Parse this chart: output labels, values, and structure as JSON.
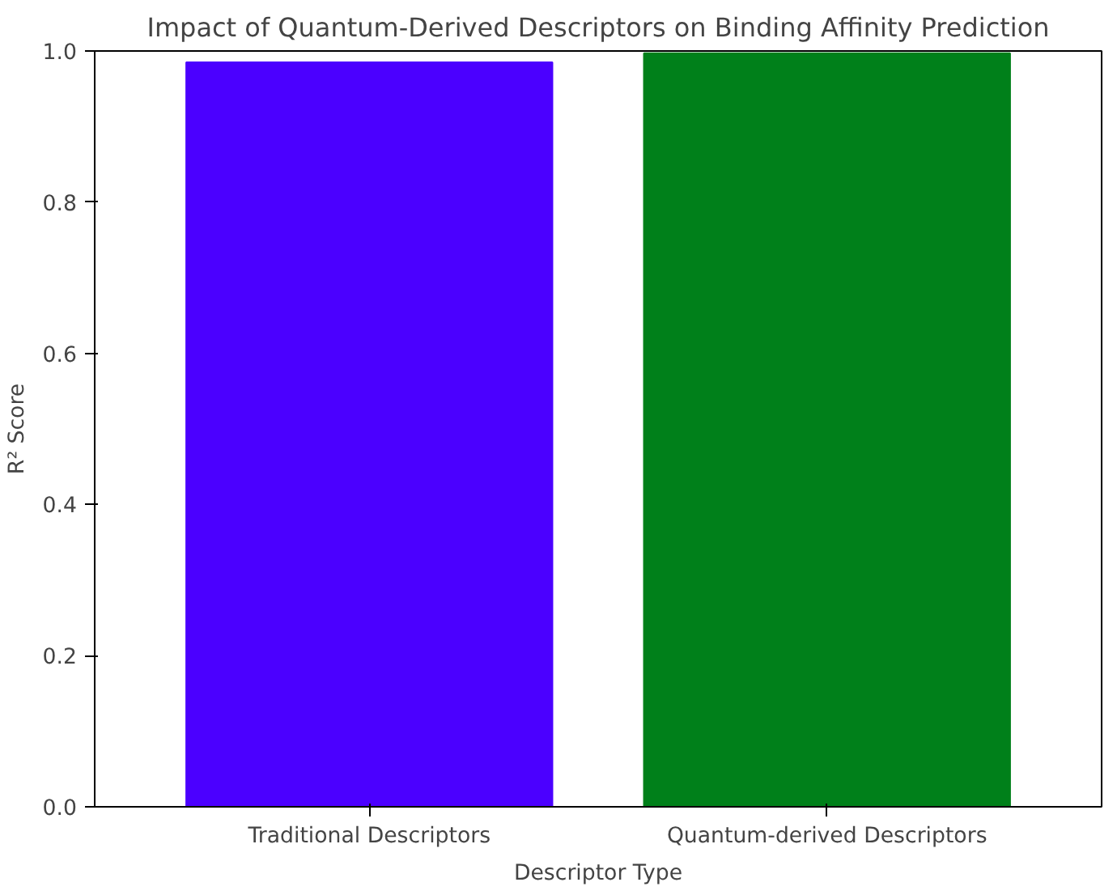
{
  "chart_data": {
    "type": "bar",
    "title": "Impact of Quantum-Derived Descriptors on Binding Affinity Prediction",
    "xlabel": "Descriptor Type",
    "ylabel": "R² Score",
    "categories": [
      "Traditional Descriptors",
      "Quantum-derived Descriptors"
    ],
    "values": [
      0.985,
      0.997
    ],
    "colors": [
      "#4b00ff",
      "#00801a"
    ],
    "ylim": [
      0,
      1
    ],
    "yticks": [
      {
        "value": 0,
        "label": "0.0"
      },
      {
        "value": 0.2,
        "label": "0.2"
      },
      {
        "value": 0.4,
        "label": "0.4"
      },
      {
        "value": 0.6,
        "label": "0.6"
      },
      {
        "value": 0.8,
        "label": "0.8"
      },
      {
        "value": 1,
        "label": "1.0"
      }
    ],
    "grid": false
  }
}
